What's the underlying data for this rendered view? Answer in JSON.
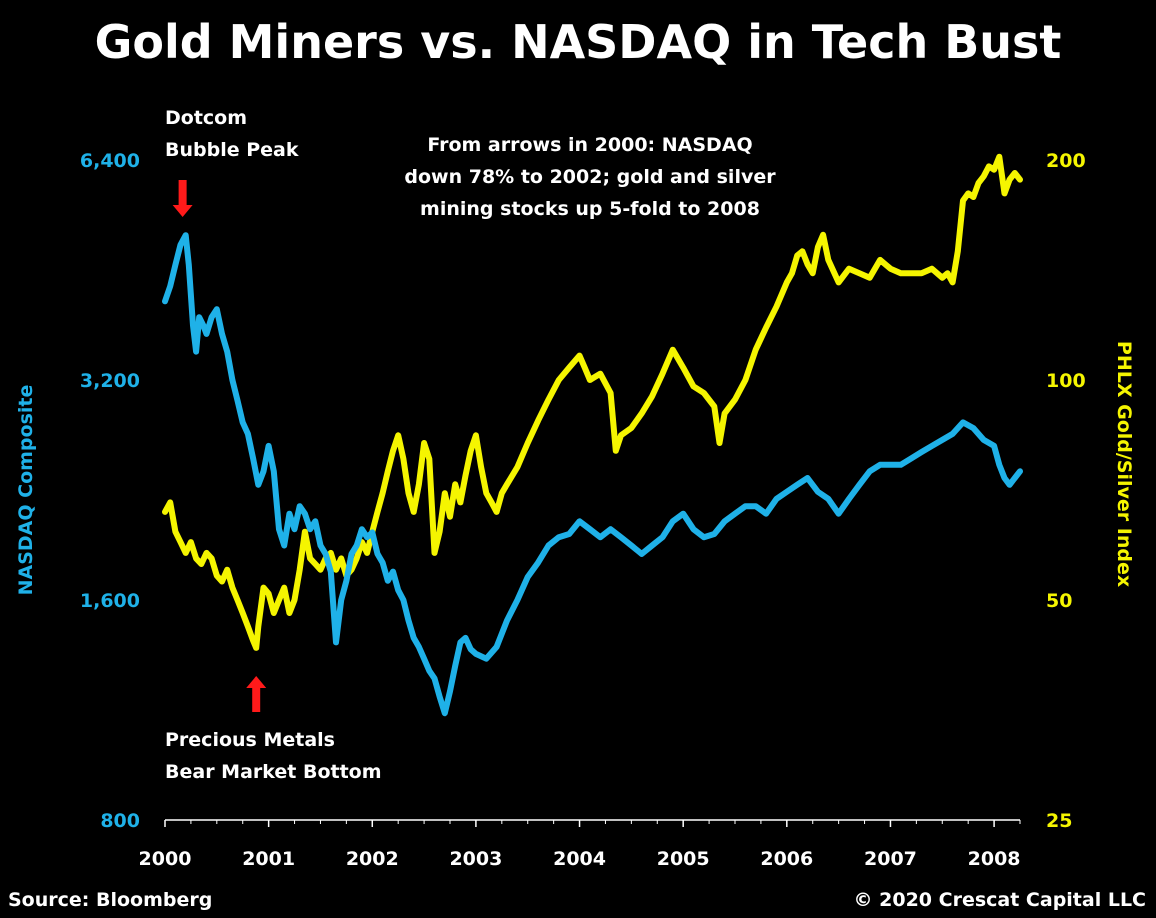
{
  "chart_data": {
    "type": "line",
    "title": "Gold Miners vs. NASDAQ in Tech Bust",
    "ylabel_left": "NASDAQ Composite",
    "ylabel_right": "PHLX Gold/Silver Index",
    "y_left_ticks": [
      "6,400",
      "3,200",
      "1,600",
      "800"
    ],
    "y_left_tick_values": [
      6400,
      3200,
      1600,
      800
    ],
    "y_right_ticks": [
      "200",
      "100",
      "50",
      "25"
    ],
    "y_right_tick_values": [
      200,
      100,
      50,
      25
    ],
    "y_left_scale": "log",
    "y_right_scale": "log",
    "ylim_left": [
      800,
      6400
    ],
    "ylim_right": [
      25,
      200
    ],
    "x_ticks": [
      "2000",
      "2001",
      "2002",
      "2003",
      "2004",
      "2005",
      "2006",
      "2007",
      "2008"
    ],
    "x_tick_values": [
      2000,
      2001,
      2002,
      2003,
      2004,
      2005,
      2006,
      2007,
      2008
    ],
    "xlim": [
      2000,
      2008.25
    ],
    "grid": false,
    "annotations": {
      "peak_label": [
        "Dotcom",
        "Bubble Peak"
      ],
      "bottom_label": [
        "Precious Metals",
        "Bear Market Bottom"
      ],
      "note": [
        "From arrows in 2000: NASDAQ",
        "down 78% to 2002; gold and silver",
        "mining stocks up 5-fold to 2008"
      ]
    },
    "annotation_arrows": [
      {
        "x": 2000.17,
        "direction": "down",
        "color": "#ff1a1a"
      },
      {
        "x": 2000.88,
        "direction": "up",
        "color": "#ff1a1a"
      }
    ],
    "source": "Source: Bloomberg",
    "copyright": "© 2020 Crescat Capital LLC",
    "series": [
      {
        "name": "NASDAQ Composite",
        "axis": "left",
        "color": "#1fb1e8",
        "x": [
          2000.0,
          2000.05,
          2000.1,
          2000.15,
          2000.2,
          2000.23,
          2000.27,
          2000.3,
          2000.33,
          2000.37,
          2000.4,
          2000.45,
          2000.5,
          2000.55,
          2000.6,
          2000.65,
          2000.7,
          2000.75,
          2000.8,
          2000.85,
          2000.9,
          2000.95,
          2001.0,
          2001.05,
          2001.1,
          2001.15,
          2001.2,
          2001.25,
          2001.3,
          2001.35,
          2001.4,
          2001.45,
          2001.5,
          2001.55,
          2001.6,
          2001.65,
          2001.7,
          2001.75,
          2001.8,
          2001.85,
          2001.9,
          2001.95,
          2002.0,
          2002.05,
          2002.1,
          2002.15,
          2002.2,
          2002.25,
          2002.3,
          2002.35,
          2002.4,
          2002.45,
          2002.5,
          2002.55,
          2002.6,
          2002.65,
          2002.7,
          2002.75,
          2002.8,
          2002.85,
          2002.9,
          2002.95,
          2003.0,
          2003.1,
          2003.2,
          2003.3,
          2003.4,
          2003.5,
          2003.6,
          2003.7,
          2003.8,
          2003.9,
          2004.0,
          2004.1,
          2004.2,
          2004.3,
          2004.4,
          2004.5,
          2004.6,
          2004.7,
          2004.8,
          2004.9,
          2005.0,
          2005.1,
          2005.2,
          2005.3,
          2005.4,
          2005.5,
          2005.6,
          2005.7,
          2005.8,
          2005.9,
          2006.0,
          2006.1,
          2006.2,
          2006.3,
          2006.4,
          2006.5,
          2006.6,
          2006.7,
          2006.8,
          2006.9,
          2007.0,
          2007.1,
          2007.2,
          2007.3,
          2007.4,
          2007.5,
          2007.6,
          2007.7,
          2007.8,
          2007.9,
          2008.0,
          2008.05,
          2008.1,
          2008.15,
          2008.2,
          2008.25
        ],
        "values": [
          4100,
          4300,
          4600,
          4900,
          5050,
          4600,
          3800,
          3500,
          3900,
          3800,
          3700,
          3900,
          4000,
          3700,
          3500,
          3200,
          3000,
          2800,
          2700,
          2500,
          2300,
          2400,
          2600,
          2400,
          2000,
          1900,
          2100,
          2000,
          2150,
          2100,
          2000,
          2050,
          1900,
          1850,
          1750,
          1400,
          1600,
          1700,
          1850,
          1900,
          2000,
          1950,
          1980,
          1850,
          1800,
          1700,
          1750,
          1650,
          1600,
          1500,
          1420,
          1380,
          1330,
          1280,
          1250,
          1180,
          1120,
          1200,
          1300,
          1400,
          1420,
          1370,
          1350,
          1330,
          1380,
          1500,
          1600,
          1720,
          1800,
          1900,
          1950,
          1970,
          2050,
          2000,
          1950,
          2000,
          1950,
          1900,
          1850,
          1900,
          1950,
          2050,
          2100,
          2000,
          1950,
          1970,
          2050,
          2100,
          2150,
          2150,
          2100,
          2200,
          2250,
          2300,
          2350,
          2250,
          2200,
          2100,
          2200,
          2300,
          2400,
          2450,
          2450,
          2450,
          2500,
          2550,
          2600,
          2650,
          2700,
          2800,
          2750,
          2650,
          2600,
          2450,
          2350,
          2300,
          2350,
          2400
        ]
      },
      {
        "name": "PHLX Gold/Silver Index",
        "axis": "right",
        "color": "#f5f500",
        "x": [
          2000.0,
          2000.05,
          2000.1,
          2000.15,
          2000.2,
          2000.25,
          2000.3,
          2000.35,
          2000.4,
          2000.45,
          2000.5,
          2000.55,
          2000.6,
          2000.65,
          2000.7,
          2000.75,
          2000.8,
          2000.85,
          2000.88,
          2000.9,
          2000.95,
          2001.0,
          2001.05,
          2001.1,
          2001.15,
          2001.2,
          2001.25,
          2001.3,
          2001.35,
          2001.4,
          2001.45,
          2001.5,
          2001.55,
          2001.6,
          2001.65,
          2001.7,
          2001.75,
          2001.8,
          2001.85,
          2001.9,
          2001.95,
          2002.0,
          2002.05,
          2002.1,
          2002.15,
          2002.2,
          2002.25,
          2002.3,
          2002.35,
          2002.4,
          2002.45,
          2002.5,
          2002.55,
          2002.6,
          2002.65,
          2002.7,
          2002.75,
          2002.8,
          2002.85,
          2002.9,
          2002.95,
          2003.0,
          2003.05,
          2003.1,
          2003.15,
          2003.2,
          2003.25,
          2003.3,
          2003.4,
          2003.5,
          2003.6,
          2003.7,
          2003.8,
          2003.9,
          2004.0,
          2004.05,
          2004.1,
          2004.2,
          2004.3,
          2004.35,
          2004.4,
          2004.5,
          2004.6,
          2004.7,
          2004.8,
          2004.9,
          2005.0,
          2005.1,
          2005.2,
          2005.3,
          2005.35,
          2005.4,
          2005.5,
          2005.6,
          2005.7,
          2005.8,
          2005.9,
          2006.0,
          2006.05,
          2006.1,
          2006.15,
          2006.2,
          2006.25,
          2006.3,
          2006.35,
          2006.4,
          2006.5,
          2006.6,
          2006.7,
          2006.8,
          2006.9,
          2007.0,
          2007.1,
          2007.2,
          2007.3,
          2007.4,
          2007.5,
          2007.55,
          2007.6,
          2007.65,
          2007.7,
          2007.75,
          2007.8,
          2007.85,
          2007.9,
          2007.95,
          2008.0,
          2008.05,
          2008.1,
          2008.15,
          2008.2,
          2008.25
        ],
        "values": [
          66,
          68,
          62,
          60,
          58,
          60,
          57,
          56,
          58,
          57,
          54,
          53,
          55,
          52,
          50,
          48,
          46,
          44,
          43,
          46,
          52,
          51,
          48,
          50,
          52,
          48,
          50,
          55,
          62,
          57,
          56,
          55,
          57,
          58,
          55,
          57,
          54,
          55,
          57,
          60,
          58,
          62,
          66,
          70,
          75,
          80,
          84,
          78,
          70,
          66,
          72,
          82,
          78,
          58,
          62,
          70,
          65,
          72,
          68,
          74,
          80,
          84,
          76,
          70,
          68,
          66,
          70,
          72,
          76,
          82,
          88,
          94,
          100,
          104,
          108,
          104,
          100,
          102,
          96,
          80,
          84,
          86,
          90,
          95,
          102,
          110,
          104,
          98,
          96,
          92,
          82,
          90,
          94,
          100,
          110,
          118,
          126,
          136,
          140,
          148,
          150,
          144,
          140,
          152,
          158,
          146,
          136,
          142,
          140,
          138,
          146,
          142,
          140,
          140,
          140,
          142,
          138,
          140,
          136,
          150,
          176,
          180,
          178,
          186,
          190,
          196,
          194,
          202,
          180,
          188,
          192,
          188
        ]
      }
    ]
  }
}
